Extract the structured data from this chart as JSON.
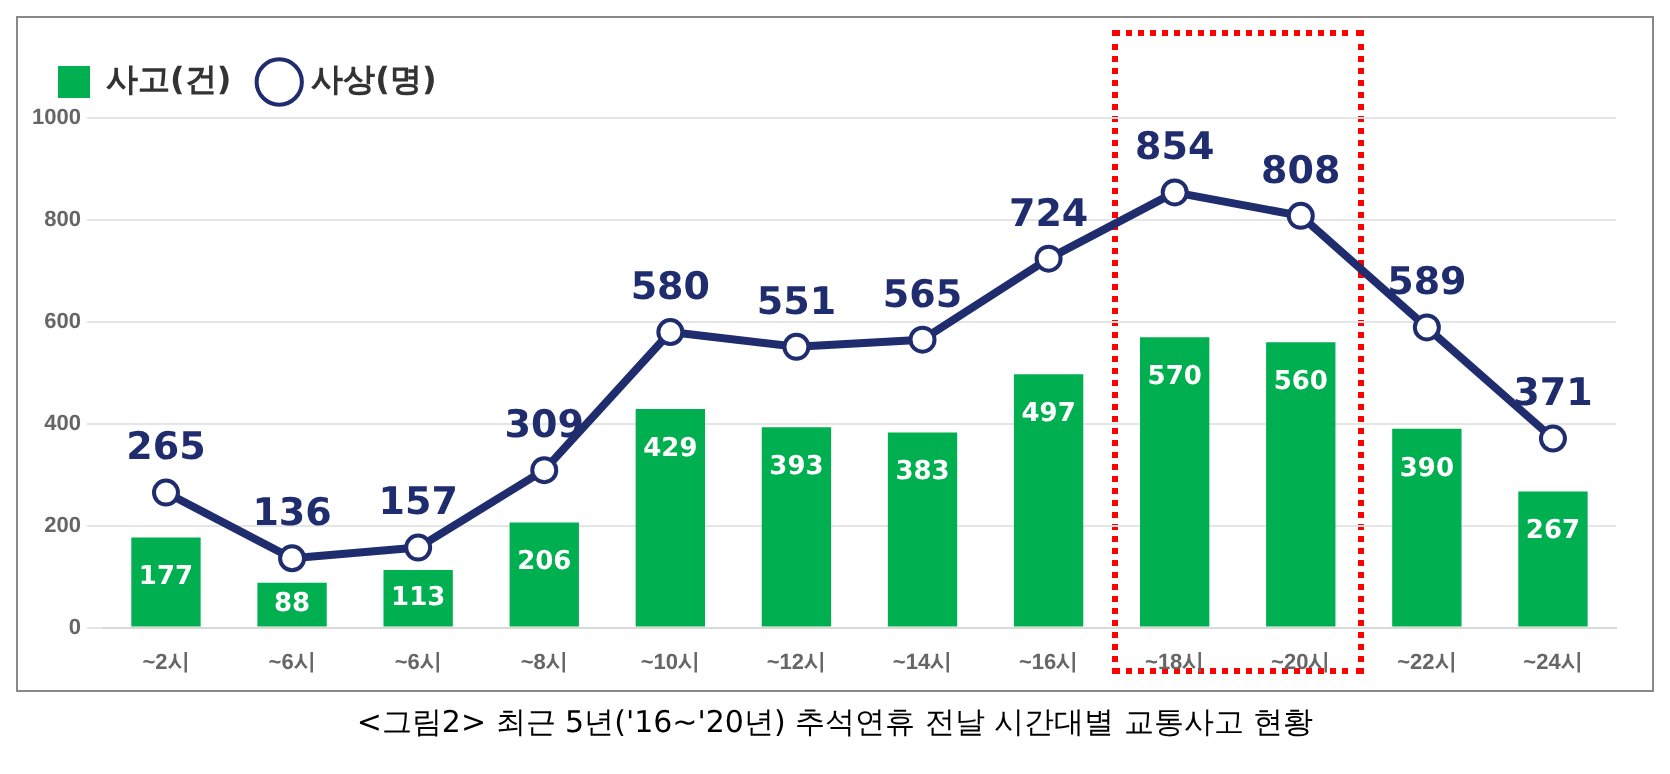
{
  "chart_data": {
    "type": "bar",
    "categories": [
      "~2시",
      "~6시",
      "~6시",
      "~8시",
      "~10시",
      "~12시",
      "~14시",
      "~16시",
      "~18시",
      "~20시",
      "~22시",
      "~24시"
    ],
    "series": [
      {
        "name": "사고(건)",
        "color": "#00b050",
        "values": [
          177,
          88,
          113,
          206,
          429,
          393,
          383,
          497,
          570,
          560,
          390,
          267
        ]
      },
      {
        "name": "사상(명)",
        "type": "line",
        "color": "#1f2d6e",
        "marker": "circle",
        "values": [
          265,
          136,
          157,
          309,
          580,
          551,
          565,
          724,
          854,
          808,
          589,
          371
        ]
      }
    ],
    "ylim": [
      0,
      1000
    ],
    "yticks": [
      0,
      200,
      400,
      600,
      800,
      1000
    ],
    "grid": "y",
    "legend": "top left",
    "data_labels": true,
    "annotations": [
      "<그림2> 최근 5년('16~'20년) 추석연휴 전날 시간대별 교통사고 현황"
    ]
  }
}
